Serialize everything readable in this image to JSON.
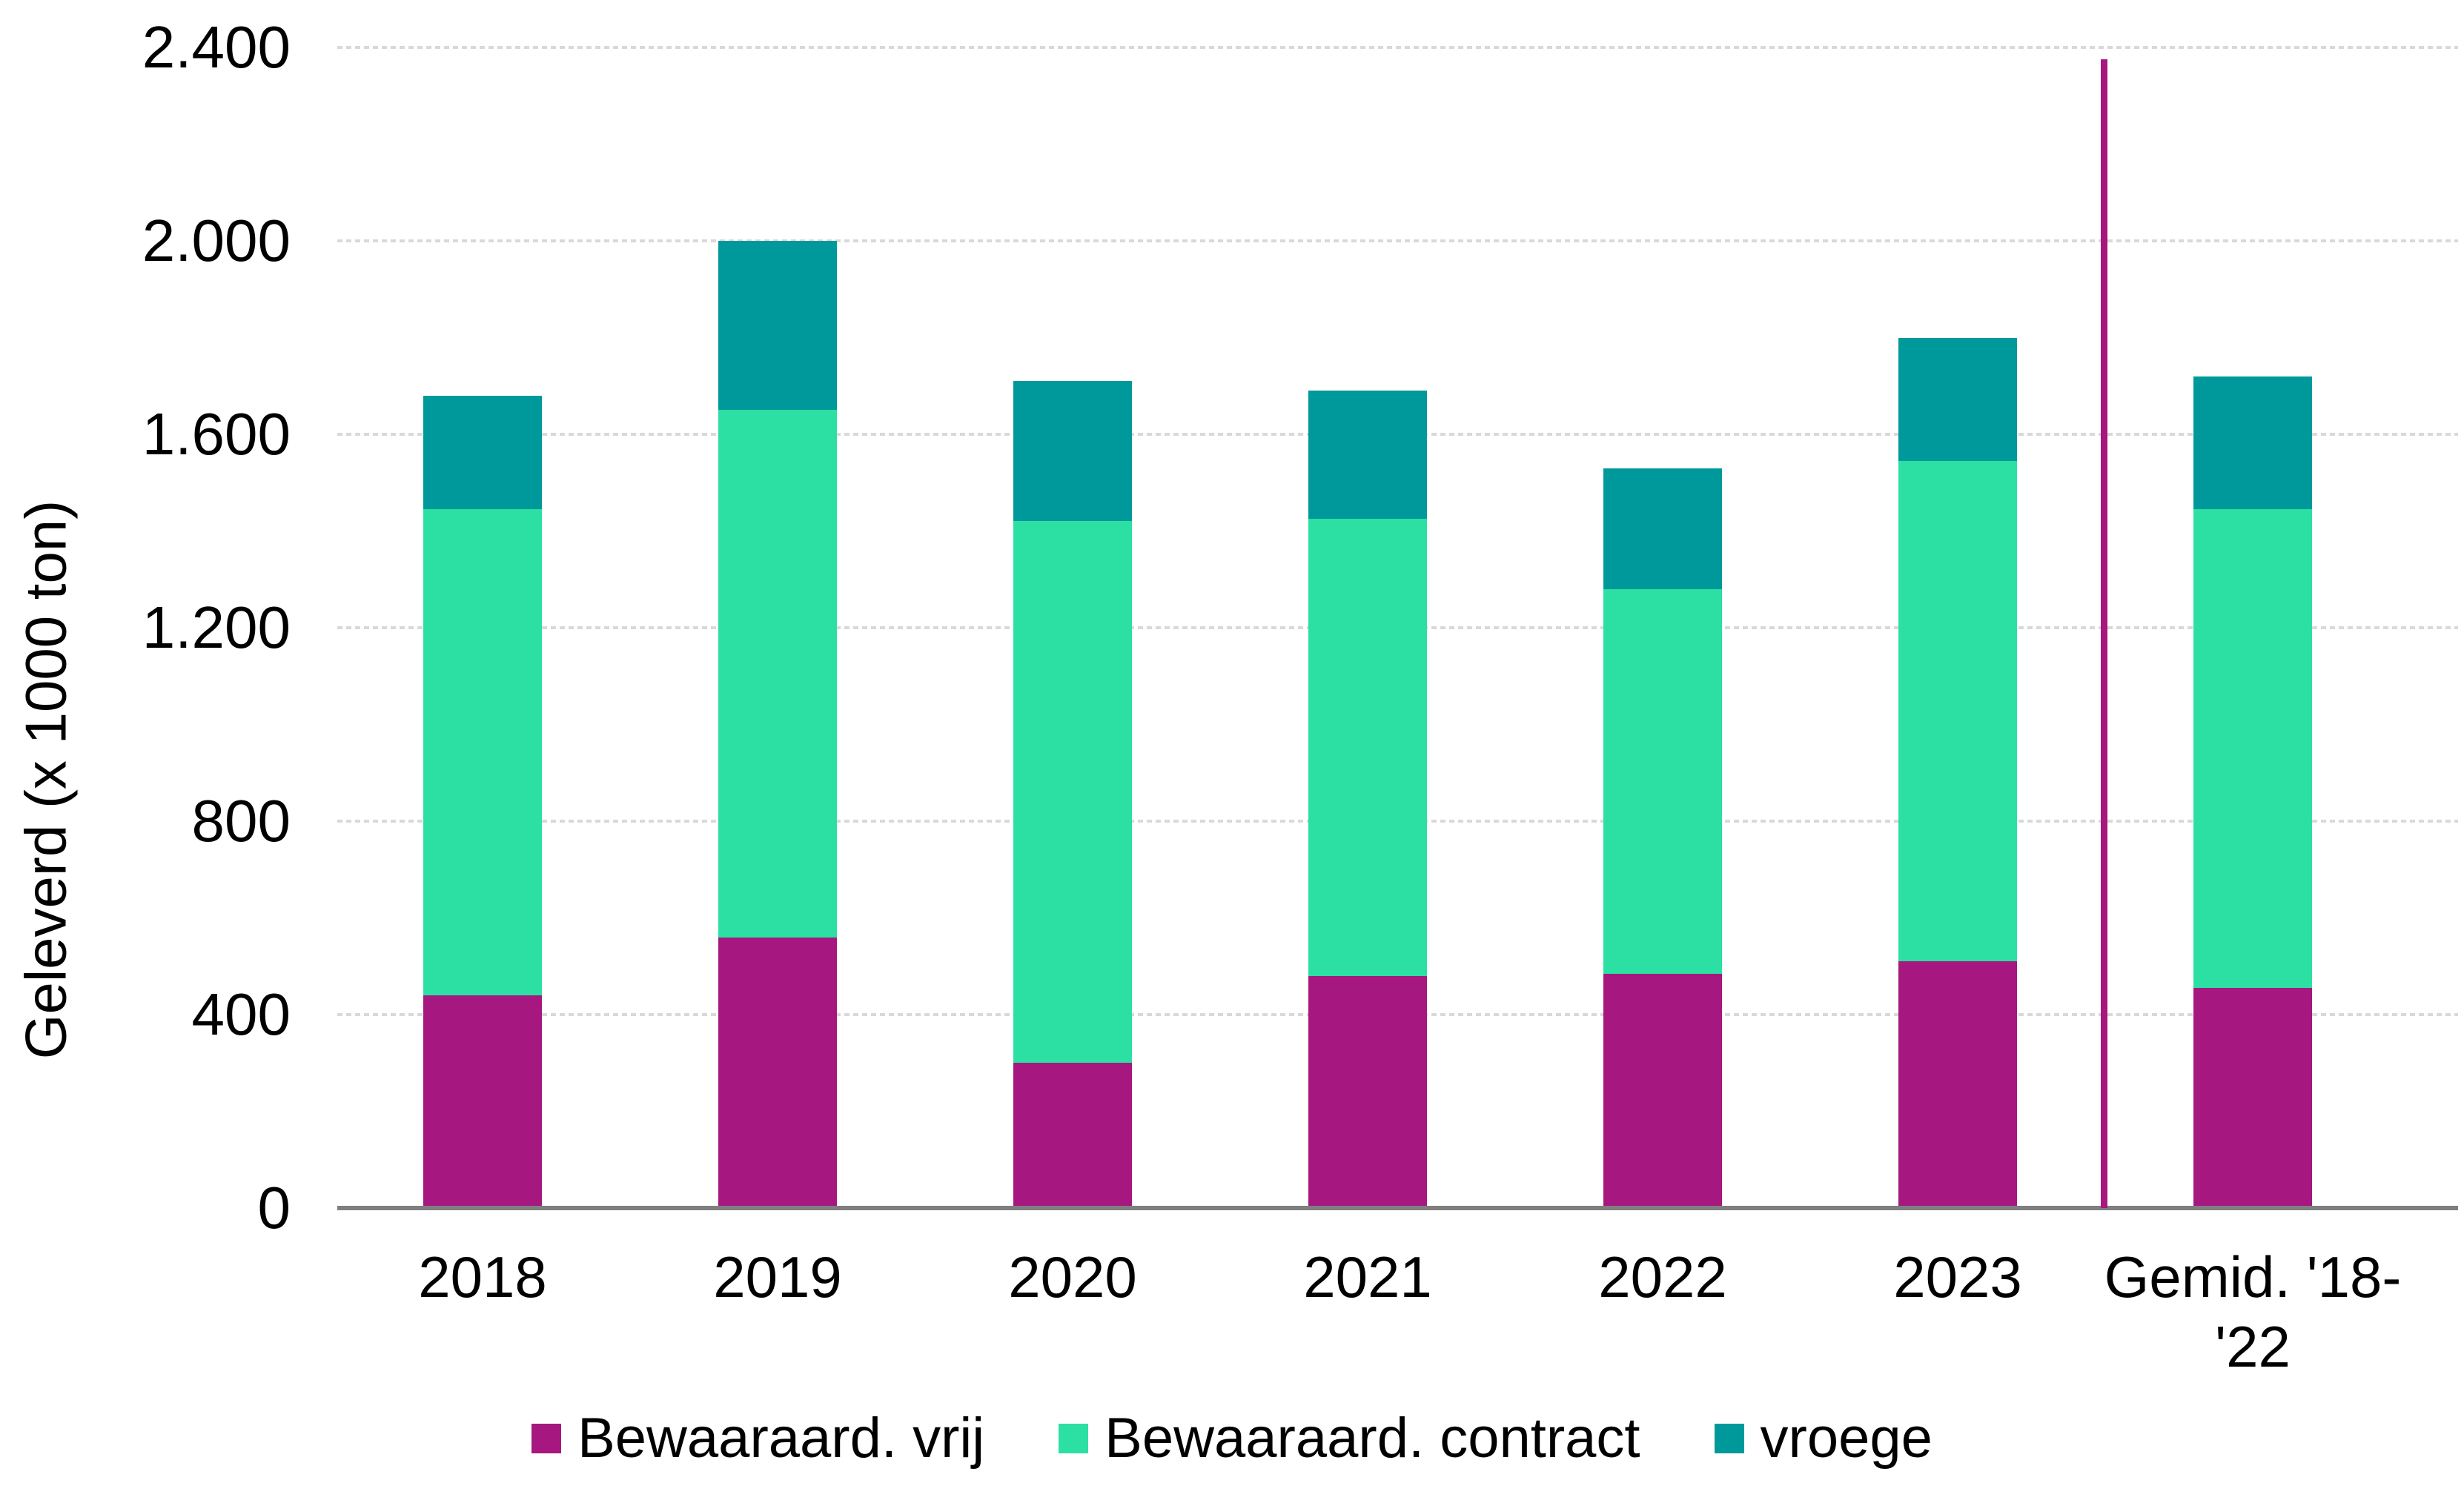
{
  "chart_data": {
    "type": "bar",
    "stacked": true,
    "title": "",
    "xlabel": "",
    "ylabel": "Geleverd (x 1000 ton)",
    "ylim": [
      0,
      2400
    ],
    "grid": true,
    "legend_position": "bottom",
    "y_ticks": [
      {
        "value": 0,
        "label": "0"
      },
      {
        "value": 400,
        "label": "400"
      },
      {
        "value": 800,
        "label": "800"
      },
      {
        "value": 1200,
        "label": "1.200"
      },
      {
        "value": 1600,
        "label": "1.600"
      },
      {
        "value": 2000,
        "label": "2.000"
      },
      {
        "value": 2400,
        "label": "2.400"
      }
    ],
    "categories": [
      "2018",
      "2019",
      "2020",
      "2021",
      "2022",
      "2023",
      "Gemid. '18-\n'22"
    ],
    "series": [
      {
        "name": "Bewaaraard. vrij",
        "color": "#A6177F",
        "values": [
          440,
          560,
          300,
          480,
          485,
          510,
          455
        ]
      },
      {
        "name": "Bewaaraard. contract",
        "color": "#2BE0A2",
        "values": [
          1005,
          1090,
          1120,
          945,
          795,
          1035,
          990
        ]
      },
      {
        "name": "vroege",
        "color": "#00999B",
        "values": [
          235,
          350,
          290,
          265,
          250,
          255,
          275
        ]
      }
    ],
    "totals": [
      1680,
      2000,
      1710,
      1690,
      1530,
      1800,
      1720
    ],
    "separator_line": {
      "description": "vertical line between 2023 and Gemid. '18-'22",
      "color": "#A6177F",
      "top_value": 2375
    },
    "colors": {
      "gridline": "#D9D9D9",
      "axis": "#7F7F7F",
      "text": "#000000",
      "background": "#FFFFFF"
    }
  }
}
